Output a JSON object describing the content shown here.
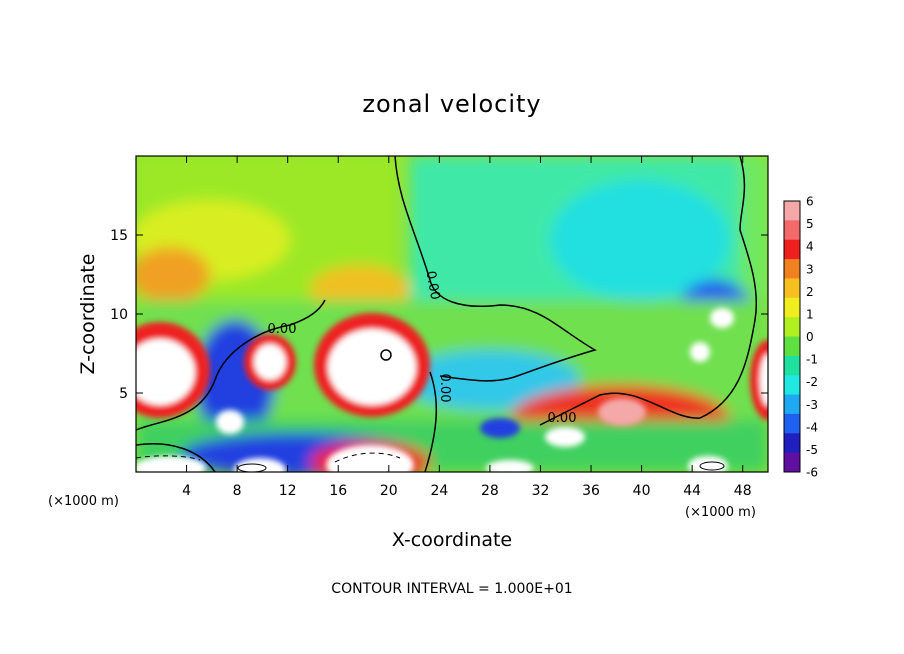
{
  "chart_data": {
    "type": "heatmap",
    "title": "zonal velocity",
    "xlabel": "X-coordinate",
    "ylabel": "Z-coordinate",
    "x_unit": "(×1000 m)",
    "y_unit": "(×1000 m)",
    "xlim": [
      0,
      50
    ],
    "ylim": [
      0,
      20
    ],
    "x_ticks": [
      4,
      8,
      12,
      16,
      20,
      24,
      28,
      32,
      36,
      40,
      44,
      48
    ],
    "y_ticks": [
      5,
      10,
      15
    ],
    "colorbar": {
      "ticks": [
        6,
        5,
        4,
        3,
        2,
        1,
        0,
        -1,
        -2,
        -3,
        -4,
        -5,
        -6
      ],
      "colors": [
        "#f4a8a8",
        "#f26a6a",
        "#ee2020",
        "#f08020",
        "#f5c020",
        "#f0ee20",
        "#b0f020",
        "#60e040",
        "#20e0a0",
        "#20e8e0",
        "#20a8f0",
        "#2060f0",
        "#2020c0",
        "#6010a0"
      ]
    },
    "contour_labels": [
      "0.00",
      "0.00",
      "0.00",
      "0.00"
    ],
    "footer": "CONTOUR INTERVAL = 1.000E+01",
    "grid": false
  }
}
